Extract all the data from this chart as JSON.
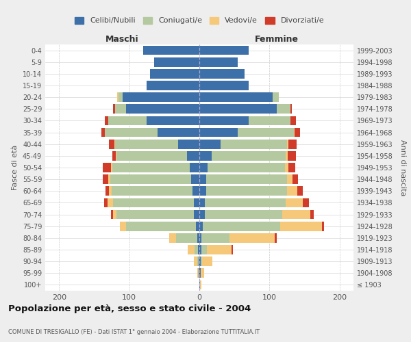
{
  "age_groups": [
    "100+",
    "95-99",
    "90-94",
    "85-89",
    "80-84",
    "75-79",
    "70-74",
    "65-69",
    "60-64",
    "55-59",
    "50-54",
    "45-49",
    "40-44",
    "35-39",
    "30-34",
    "25-29",
    "20-24",
    "15-19",
    "10-14",
    "5-9",
    "0-4"
  ],
  "birth_years": [
    "≤ 1903",
    "1904-1908",
    "1909-1913",
    "1914-1918",
    "1919-1923",
    "1924-1928",
    "1929-1933",
    "1934-1938",
    "1939-1943",
    "1944-1948",
    "1949-1953",
    "1954-1958",
    "1959-1963",
    "1964-1968",
    "1969-1973",
    "1974-1978",
    "1979-1983",
    "1984-1988",
    "1989-1993",
    "1994-1998",
    "1999-2003"
  ],
  "colors": {
    "celibi": "#3d6fa8",
    "coniugati": "#b5c9a0",
    "vedovi": "#f5c87a",
    "divorziati": "#d13b2a"
  },
  "maschi": {
    "celibi": [
      0,
      1,
      1,
      2,
      3,
      5,
      8,
      8,
      10,
      12,
      14,
      18,
      30,
      60,
      75,
      105,
      110,
      75,
      70,
      65,
      80
    ],
    "coniugati": [
      0,
      0,
      2,
      5,
      30,
      100,
      110,
      115,
      115,
      115,
      110,
      100,
      90,
      75,
      55,
      15,
      5,
      0,
      0,
      0,
      0
    ],
    "vedovi": [
      0,
      2,
      5,
      10,
      10,
      8,
      5,
      8,
      4,
      3,
      2,
      1,
      1,
      0,
      0,
      0,
      2,
      0,
      0,
      0,
      0
    ],
    "divorziati": [
      0,
      0,
      0,
      0,
      0,
      0,
      3,
      5,
      5,
      8,
      12,
      5,
      8,
      5,
      5,
      3,
      0,
      0,
      0,
      0,
      0
    ]
  },
  "femmine": {
    "celibi": [
      1,
      2,
      2,
      3,
      3,
      5,
      8,
      8,
      10,
      10,
      12,
      18,
      30,
      55,
      70,
      110,
      105,
      70,
      65,
      55,
      70
    ],
    "coniugati": [
      0,
      0,
      2,
      8,
      40,
      110,
      110,
      115,
      115,
      115,
      110,
      105,
      95,
      80,
      60,
      20,
      8,
      0,
      0,
      0,
      0
    ],
    "vedovi": [
      2,
      5,
      15,
      35,
      65,
      60,
      40,
      25,
      15,
      8,
      5,
      3,
      2,
      1,
      0,
      0,
      0,
      0,
      0,
      0,
      0
    ],
    "divorziati": [
      0,
      0,
      0,
      2,
      2,
      3,
      5,
      8,
      8,
      8,
      10,
      12,
      12,
      8,
      8,
      2,
      0,
      0,
      0,
      0,
      0
    ]
  },
  "title": "Popolazione per età, sesso e stato civile - 2004",
  "subtitle": "COMUNE DI TRESIGALLO (FE) - Dati ISTAT 1° gennaio 2004 - Elaborazione TUTTITALIA.IT",
  "ylabel": "Fasce di età",
  "ylabel_right": "Anni di nascita",
  "xlabel_left": "Maschi",
  "xlabel_right": "Femmine",
  "xlim": 220,
  "legend_labels": [
    "Celibi/Nubili",
    "Coniugati/e",
    "Vedovi/e",
    "Divorziati/e"
  ],
  "background_color": "#eeeeee",
  "plot_bg": "#ffffff"
}
